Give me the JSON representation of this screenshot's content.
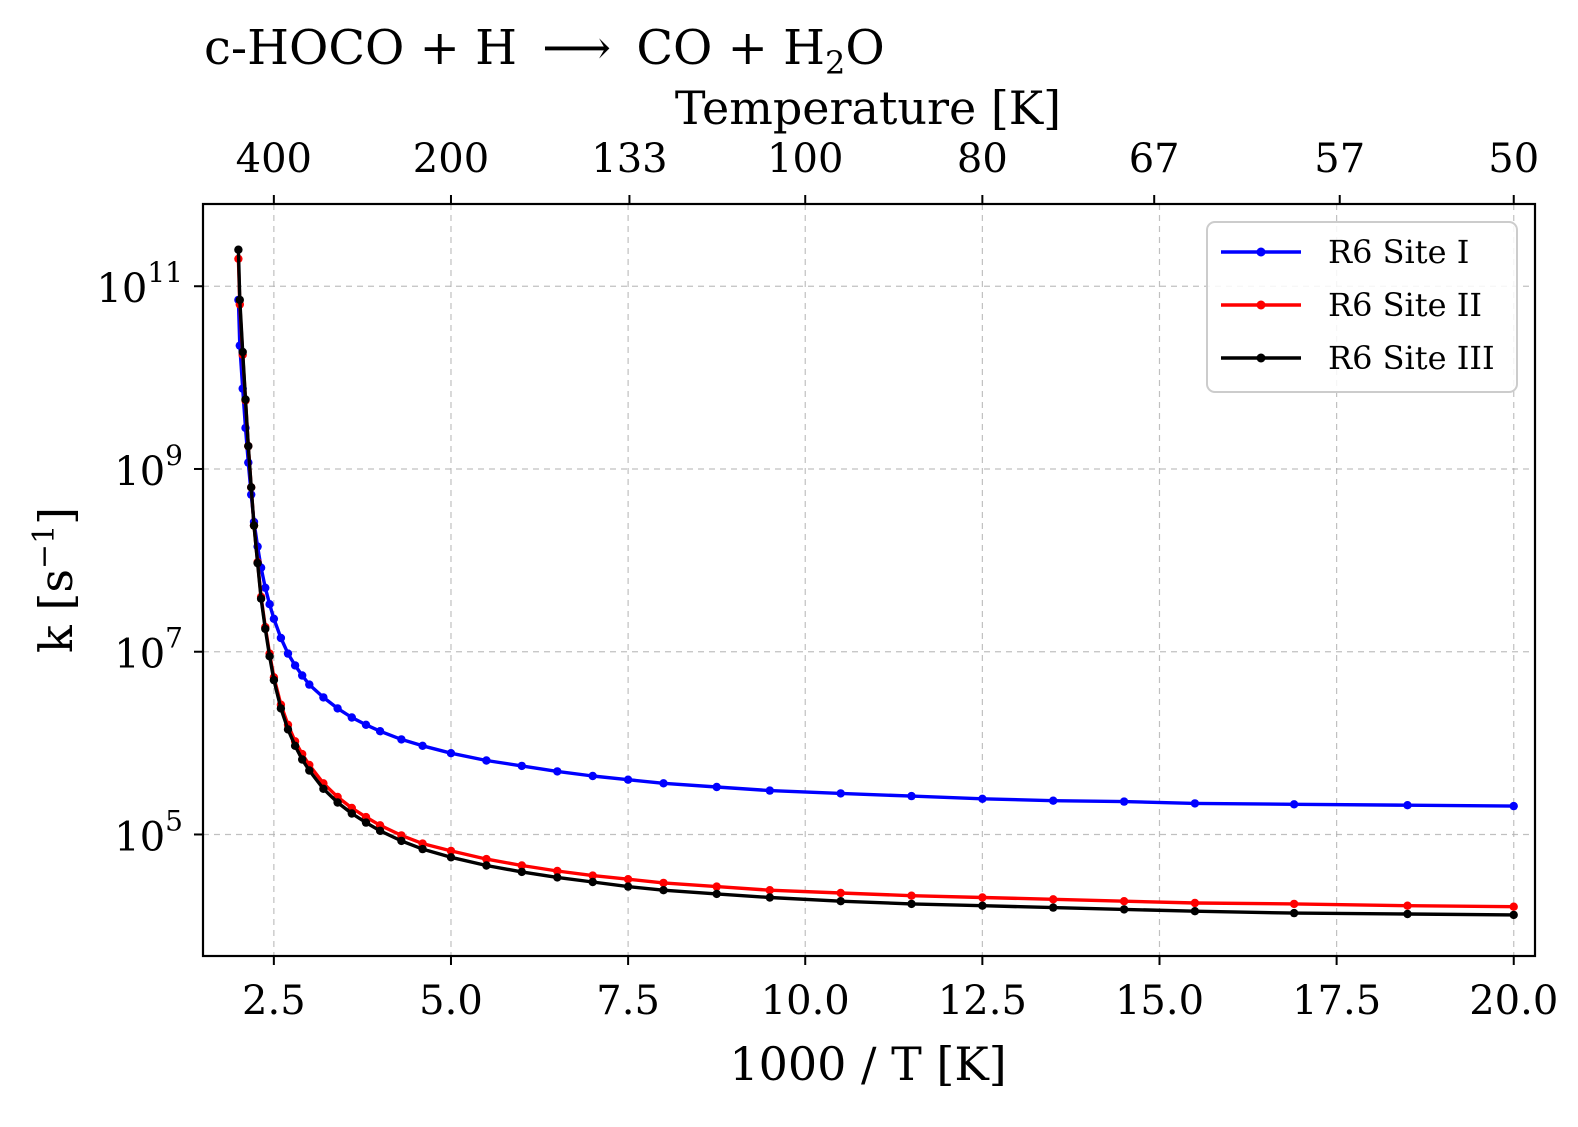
{
  "chart_data": {
    "type": "line",
    "title": "c-HOCO + H ⟶ CO + H₂O",
    "title_parts": {
      "lhs": "c-HOCO + H",
      "arrow": "⟶",
      "rhs_a": "CO + H",
      "sub": "2",
      "rhs_b": "O"
    },
    "xlabel": "1000 / T [K]",
    "ylabel": "k [s⁻¹]",
    "ylabel_parts": {
      "base": "k [s",
      "sup": "−1",
      "close": "]"
    },
    "secondary_xlabel": "Temperature [K]",
    "xlim": [
      1.5,
      20.3
    ],
    "ylim_log10": [
      3.67,
      11.9
    ],
    "scale_y": "log",
    "grid": true,
    "legend_position": "top-right",
    "x_ticks": [
      2.5,
      5.0,
      7.5,
      10.0,
      12.5,
      15.0,
      17.5,
      20.0
    ],
    "x_tick_labels": [
      "2.5",
      "5.0",
      "7.5",
      "10.0",
      "12.5",
      "15.0",
      "17.5",
      "20.0"
    ],
    "y_ticks_log10": [
      5,
      7,
      9,
      11
    ],
    "y_tick_labels": [
      {
        "base": "10",
        "exp": "5"
      },
      {
        "base": "10",
        "exp": "7"
      },
      {
        "base": "10",
        "exp": "9"
      },
      {
        "base": "10",
        "exp": "11"
      }
    ],
    "secondary_ticks_T": [
      400,
      200,
      133,
      100,
      80,
      67,
      57,
      50
    ],
    "secondary_tick_labels": [
      "400",
      "200",
      "133",
      "100",
      "80",
      "67",
      "57",
      "50"
    ],
    "series": [
      {
        "name": "R6 Site I",
        "color": "#0000ff",
        "points": [
          [
            2.0,
            10.85
          ],
          [
            2.02,
            10.35
          ],
          [
            2.06,
            9.88
          ],
          [
            2.1,
            9.45
          ],
          [
            2.14,
            9.07
          ],
          [
            2.18,
            8.72
          ],
          [
            2.22,
            8.42
          ],
          [
            2.27,
            8.15
          ],
          [
            2.32,
            7.92
          ],
          [
            2.38,
            7.7
          ],
          [
            2.44,
            7.52
          ],
          [
            2.5,
            7.36
          ],
          [
            2.6,
            7.15
          ],
          [
            2.7,
            6.98
          ],
          [
            2.8,
            6.85
          ],
          [
            2.9,
            6.74
          ],
          [
            3.0,
            6.64
          ],
          [
            3.2,
            6.5
          ],
          [
            3.4,
            6.38
          ],
          [
            3.6,
            6.28
          ],
          [
            3.8,
            6.2
          ],
          [
            4.0,
            6.13
          ],
          [
            4.3,
            6.04
          ],
          [
            4.6,
            5.97
          ],
          [
            5.0,
            5.89
          ],
          [
            5.5,
            5.81
          ],
          [
            6.0,
            5.75
          ],
          [
            6.5,
            5.69
          ],
          [
            7.0,
            5.64
          ],
          [
            7.5,
            5.6
          ],
          [
            8.0,
            5.56
          ],
          [
            8.75,
            5.52
          ],
          [
            9.5,
            5.48
          ],
          [
            10.5,
            5.45
          ],
          [
            11.5,
            5.42
          ],
          [
            12.5,
            5.39
          ],
          [
            13.5,
            5.37
          ],
          [
            14.5,
            5.36
          ],
          [
            15.5,
            5.34
          ],
          [
            16.9,
            5.33
          ],
          [
            18.5,
            5.32
          ],
          [
            20.0,
            5.31
          ]
        ]
      },
      {
        "name": "R6 Site II",
        "color": "#ff0000",
        "points": [
          [
            2.0,
            11.3
          ],
          [
            2.02,
            10.8
          ],
          [
            2.06,
            10.25
          ],
          [
            2.1,
            9.75
          ],
          [
            2.14,
            9.25
          ],
          [
            2.18,
            8.8
          ],
          [
            2.22,
            8.38
          ],
          [
            2.27,
            7.98
          ],
          [
            2.32,
            7.6
          ],
          [
            2.38,
            7.27
          ],
          [
            2.44,
            6.98
          ],
          [
            2.5,
            6.72
          ],
          [
            2.6,
            6.42
          ],
          [
            2.7,
            6.2
          ],
          [
            2.8,
            6.02
          ],
          [
            2.9,
            5.88
          ],
          [
            3.0,
            5.76
          ],
          [
            3.2,
            5.56
          ],
          [
            3.4,
            5.41
          ],
          [
            3.6,
            5.29
          ],
          [
            3.8,
            5.19
          ],
          [
            4.0,
            5.1
          ],
          [
            4.3,
            4.99
          ],
          [
            4.6,
            4.9
          ],
          [
            5.0,
            4.82
          ],
          [
            5.5,
            4.73
          ],
          [
            6.0,
            4.66
          ],
          [
            6.5,
            4.6
          ],
          [
            7.0,
            4.55
          ],
          [
            7.5,
            4.51
          ],
          [
            8.0,
            4.47
          ],
          [
            8.75,
            4.43
          ],
          [
            9.5,
            4.39
          ],
          [
            10.5,
            4.36
          ],
          [
            11.5,
            4.33
          ],
          [
            12.5,
            4.31
          ],
          [
            13.5,
            4.29
          ],
          [
            14.5,
            4.27
          ],
          [
            15.5,
            4.25
          ],
          [
            16.9,
            4.24
          ],
          [
            18.5,
            4.22
          ],
          [
            20.0,
            4.21
          ]
        ]
      },
      {
        "name": "R6 Site III",
        "color": "#000000",
        "points": [
          [
            2.0,
            11.4
          ],
          [
            2.02,
            10.85
          ],
          [
            2.06,
            10.28
          ],
          [
            2.1,
            9.76
          ],
          [
            2.14,
            9.25
          ],
          [
            2.18,
            8.8
          ],
          [
            2.22,
            8.38
          ],
          [
            2.27,
            7.97
          ],
          [
            2.32,
            7.58
          ],
          [
            2.38,
            7.25
          ],
          [
            2.44,
            6.95
          ],
          [
            2.5,
            6.69
          ],
          [
            2.6,
            6.38
          ],
          [
            2.7,
            6.15
          ],
          [
            2.8,
            5.97
          ],
          [
            2.9,
            5.82
          ],
          [
            3.0,
            5.7
          ],
          [
            3.2,
            5.5
          ],
          [
            3.4,
            5.35
          ],
          [
            3.6,
            5.23
          ],
          [
            3.8,
            5.13
          ],
          [
            4.0,
            5.04
          ],
          [
            4.3,
            4.93
          ],
          [
            4.6,
            4.84
          ],
          [
            5.0,
            4.75
          ],
          [
            5.5,
            4.66
          ],
          [
            6.0,
            4.59
          ],
          [
            6.5,
            4.53
          ],
          [
            7.0,
            4.48
          ],
          [
            7.5,
            4.43
          ],
          [
            8.0,
            4.39
          ],
          [
            8.75,
            4.35
          ],
          [
            9.5,
            4.31
          ],
          [
            10.5,
            4.27
          ],
          [
            11.5,
            4.24
          ],
          [
            12.5,
            4.22
          ],
          [
            13.5,
            4.2
          ],
          [
            14.5,
            4.18
          ],
          [
            15.5,
            4.16
          ],
          [
            16.9,
            4.14
          ],
          [
            18.5,
            4.13
          ],
          [
            20.0,
            4.12
          ]
        ]
      }
    ]
  }
}
